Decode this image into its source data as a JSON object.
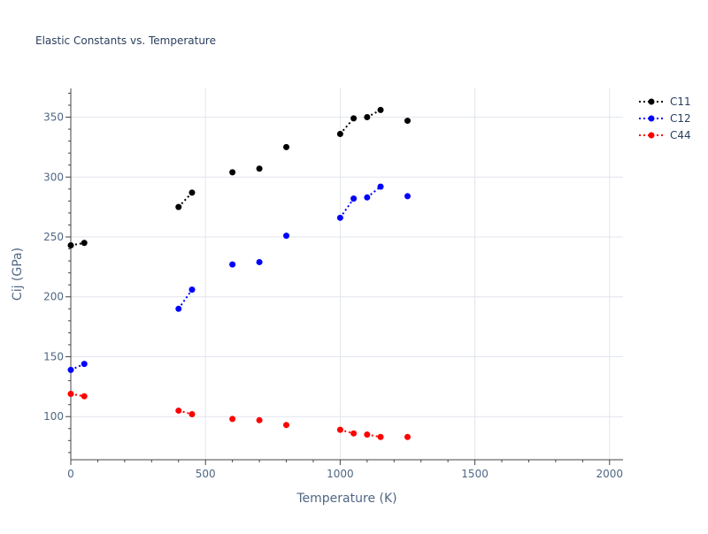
{
  "chart_data": {
    "type": "scatter",
    "title": "Elastic Constants vs. Temperature",
    "xlabel": "Temperature (K)",
    "ylabel": "Cij (GPa)",
    "xlim": [
      0,
      2050
    ],
    "ylim": [
      64,
      374
    ],
    "x_ticks": [
      0,
      500,
      1000,
      1500,
      2000
    ],
    "x_tick_labels": [
      "0",
      "500",
      "1000",
      "1500",
      "2000"
    ],
    "y_ticks": [
      100,
      150,
      200,
      250,
      300,
      350
    ],
    "y_tick_labels": [
      "100",
      "150",
      "200",
      "250",
      "300",
      "350"
    ],
    "grid": true,
    "legend_position": "top-right",
    "series": [
      {
        "name": "C11",
        "color": "#000000",
        "points": [
          [
            0,
            243
          ],
          [
            50,
            245
          ],
          [
            400,
            275
          ],
          [
            450,
            287
          ],
          [
            600,
            304
          ],
          [
            700,
            307
          ],
          [
            800,
            325
          ],
          [
            1000,
            336
          ],
          [
            1050,
            349
          ],
          [
            1100,
            350
          ],
          [
            1150,
            356
          ],
          [
            1250,
            347
          ]
        ],
        "dotted_segments": [
          [
            0,
            1
          ],
          [
            2,
            3
          ],
          [
            7,
            8
          ],
          [
            9,
            10
          ]
        ]
      },
      {
        "name": "C12",
        "color": "#0000ff",
        "points": [
          [
            0,
            139
          ],
          [
            50,
            144
          ],
          [
            400,
            190
          ],
          [
            450,
            206
          ],
          [
            600,
            227
          ],
          [
            700,
            229
          ],
          [
            800,
            251
          ],
          [
            1000,
            266
          ],
          [
            1050,
            282
          ],
          [
            1100,
            283
          ],
          [
            1150,
            292
          ],
          [
            1250,
            284
          ]
        ],
        "dotted_segments": [
          [
            0,
            1
          ],
          [
            2,
            3
          ],
          [
            7,
            8
          ],
          [
            9,
            10
          ]
        ]
      },
      {
        "name": "C44",
        "color": "#ff0000",
        "points": [
          [
            0,
            119
          ],
          [
            50,
            117
          ],
          [
            400,
            105
          ],
          [
            450,
            102
          ],
          [
            600,
            98
          ],
          [
            700,
            97
          ],
          [
            800,
            93
          ],
          [
            1000,
            89
          ],
          [
            1050,
            86
          ],
          [
            1100,
            85
          ],
          [
            1150,
            83
          ],
          [
            1250,
            83
          ]
        ],
        "dotted_segments": [
          [
            0,
            1
          ],
          [
            2,
            3
          ],
          [
            7,
            8
          ],
          [
            9,
            10
          ]
        ]
      }
    ]
  }
}
